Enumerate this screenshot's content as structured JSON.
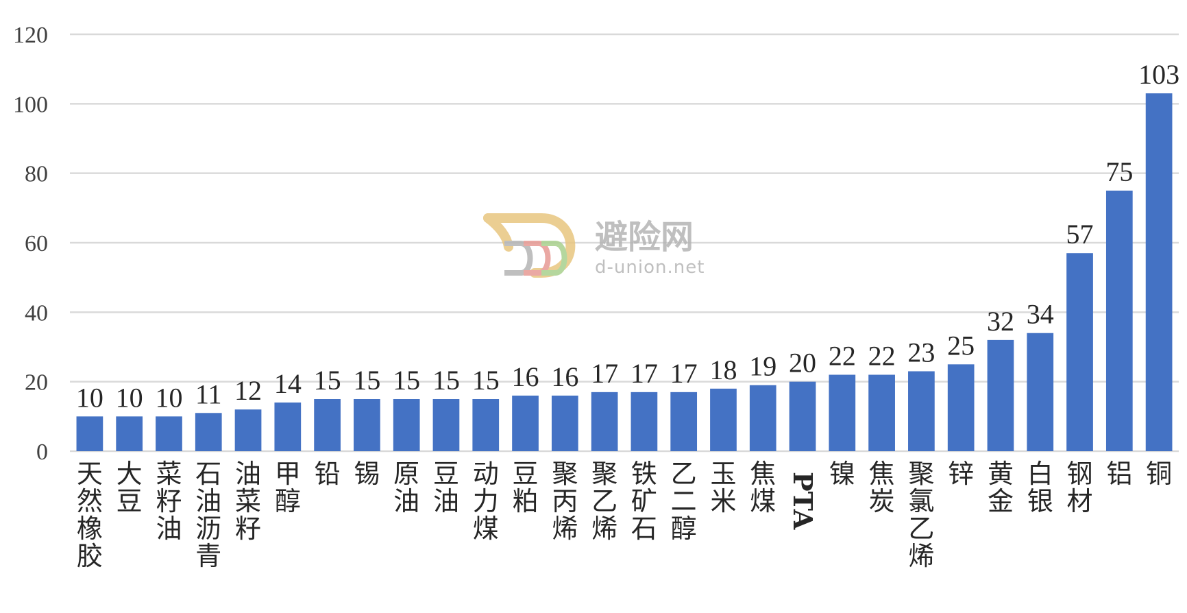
{
  "chart_data": {
    "type": "bar",
    "title": "",
    "xlabel": "",
    "ylabel": "",
    "ylim": [
      0,
      120
    ],
    "yticks": [
      0,
      20,
      40,
      60,
      80,
      100,
      120
    ],
    "grid": true,
    "legend": "none",
    "bar_color": "#4472c4",
    "categories": [
      "天然橡胶",
      "大豆",
      "菜籽油",
      "石油沥青",
      "油菜籽",
      "甲醇",
      "铅",
      "锡",
      "原油",
      "豆油",
      "动力煤",
      "豆粕",
      "聚丙烯",
      "聚乙烯",
      "铁矿石",
      "乙二醇",
      "玉米",
      "焦煤",
      "PTA",
      "镍",
      "焦炭",
      "聚氯乙烯",
      "锌",
      "黄金",
      "白银",
      "钢材",
      "铝",
      "铜"
    ],
    "values": [
      10,
      10,
      10,
      11,
      12,
      14,
      15,
      15,
      15,
      15,
      15,
      16,
      16,
      17,
      17,
      17,
      18,
      19,
      20,
      22,
      22,
      23,
      25,
      32,
      34,
      57,
      75,
      103
    ]
  },
  "watermark": {
    "logo_text": "避险网",
    "site": "d-union.net",
    "color_gold": "#e8c680",
    "color_red": "#e79a93",
    "color_green": "#a9d18e",
    "color_gray": "#b4b4b4"
  }
}
